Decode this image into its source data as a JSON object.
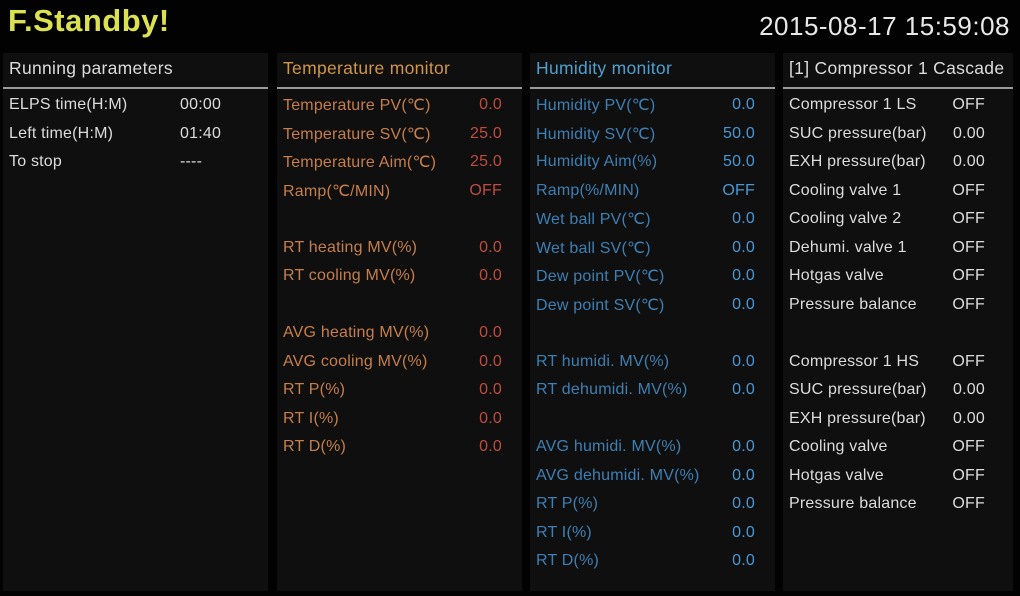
{
  "topbar": {
    "status": "F.Standby!",
    "datetime": "2015-08-17 15:59:08"
  },
  "colors": {
    "status_text": "#dce24f",
    "datetime_text": "#e8e8e8",
    "white_text": "#dcdcdc",
    "temp_accent": "#d2954a",
    "temp_label": "#c67e4b",
    "temp_value": "#bf4c3e",
    "hum_accent": "#4fa0cf",
    "hum_label": "#3f7fb3",
    "hum_value": "#4b97d4",
    "divider_line": "#9a9a9a"
  },
  "panels": [
    {
      "id": "running-parameters",
      "title": "Running parameters",
      "rows": [
        {
          "label": "ELPS time(H:M)",
          "value": "00:00"
        },
        {
          "label": "Left time(H:M)",
          "value": "01:40"
        },
        {
          "label": "To stop",
          "value": "----"
        }
      ]
    },
    {
      "id": "temperature-monitor",
      "title": "Temperature monitor",
      "rows": [
        {
          "label": "Temperature PV(℃)",
          "value": "0.0"
        },
        {
          "label": "Temperature SV(℃)",
          "value": "25.0"
        },
        {
          "label": "Temperature Aim(℃)",
          "value": "25.0"
        },
        {
          "label": "Ramp(℃/MIN)",
          "value": "OFF"
        },
        {
          "blank": true
        },
        {
          "label": "RT heating MV(%)",
          "value": "0.0"
        },
        {
          "label": "RT cooling MV(%)",
          "value": "0.0"
        },
        {
          "blank": true
        },
        {
          "label": "AVG heating MV(%)",
          "value": "0.0"
        },
        {
          "label": "AVG cooling MV(%)",
          "value": "0.0"
        },
        {
          "label": "RT P(%)",
          "value": "0.0"
        },
        {
          "label": "RT I(%)",
          "value": "0.0"
        },
        {
          "label": "RT D(%)",
          "value": "0.0"
        }
      ]
    },
    {
      "id": "humidity-monitor",
      "title": "Humidity monitor",
      "rows": [
        {
          "label": "Humidity PV(℃)",
          "value": "0.0"
        },
        {
          "label": "Humidity SV(℃)",
          "value": "50.0"
        },
        {
          "label": "Humidity Aim(%)",
          "value": "50.0"
        },
        {
          "label": "Ramp(%/MIN)",
          "value": "OFF"
        },
        {
          "label": "Wet ball PV(℃)",
          "value": "0.0"
        },
        {
          "label": "Wet ball SV(℃)",
          "value": "0.0"
        },
        {
          "label": "Dew point PV(℃)",
          "value": "0.0"
        },
        {
          "label": "Dew point SV(℃)",
          "value": "0.0"
        },
        {
          "blank": true
        },
        {
          "label": "RT humidi. MV(%)",
          "value": "0.0"
        },
        {
          "label": "RT dehumidi. MV(%)",
          "value": "0.0"
        },
        {
          "blank": true
        },
        {
          "label": "AVG humidi. MV(%)",
          "value": "0.0"
        },
        {
          "label": "AVG dehumidi. MV(%)",
          "value": "0.0"
        },
        {
          "label": "RT P(%)",
          "value": "0.0"
        },
        {
          "label": "RT I(%)",
          "value": "0.0"
        },
        {
          "label": "RT D(%)",
          "value": "0.0"
        }
      ]
    },
    {
      "id": "compressor-1-cascade",
      "title": "[1] Compressor 1 Cascade",
      "rows": [
        {
          "label": "Compressor 1 LS",
          "value": "OFF"
        },
        {
          "label": "SUC pressure(bar)",
          "value": "0.00"
        },
        {
          "label": "EXH pressure(bar)",
          "value": "0.00"
        },
        {
          "label": "Cooling valve 1",
          "value": "OFF"
        },
        {
          "label": "Cooling valve 2",
          "value": "OFF"
        },
        {
          "label": "Dehumi. valve 1",
          "value": "OFF"
        },
        {
          "label": "Hotgas valve",
          "value": "OFF"
        },
        {
          "label": "Pressure balance",
          "value": "OFF"
        },
        {
          "blank": true
        },
        {
          "label": "Compressor 1 HS",
          "value": "OFF"
        },
        {
          "label": "SUC pressure(bar)",
          "value": "0.00"
        },
        {
          "label": "EXH pressure(bar)",
          "value": "0.00"
        },
        {
          "label": "Cooling valve",
          "value": "OFF"
        },
        {
          "label": "Hotgas valve",
          "value": "OFF"
        },
        {
          "label": "Pressure balance",
          "value": "OFF"
        }
      ]
    }
  ]
}
